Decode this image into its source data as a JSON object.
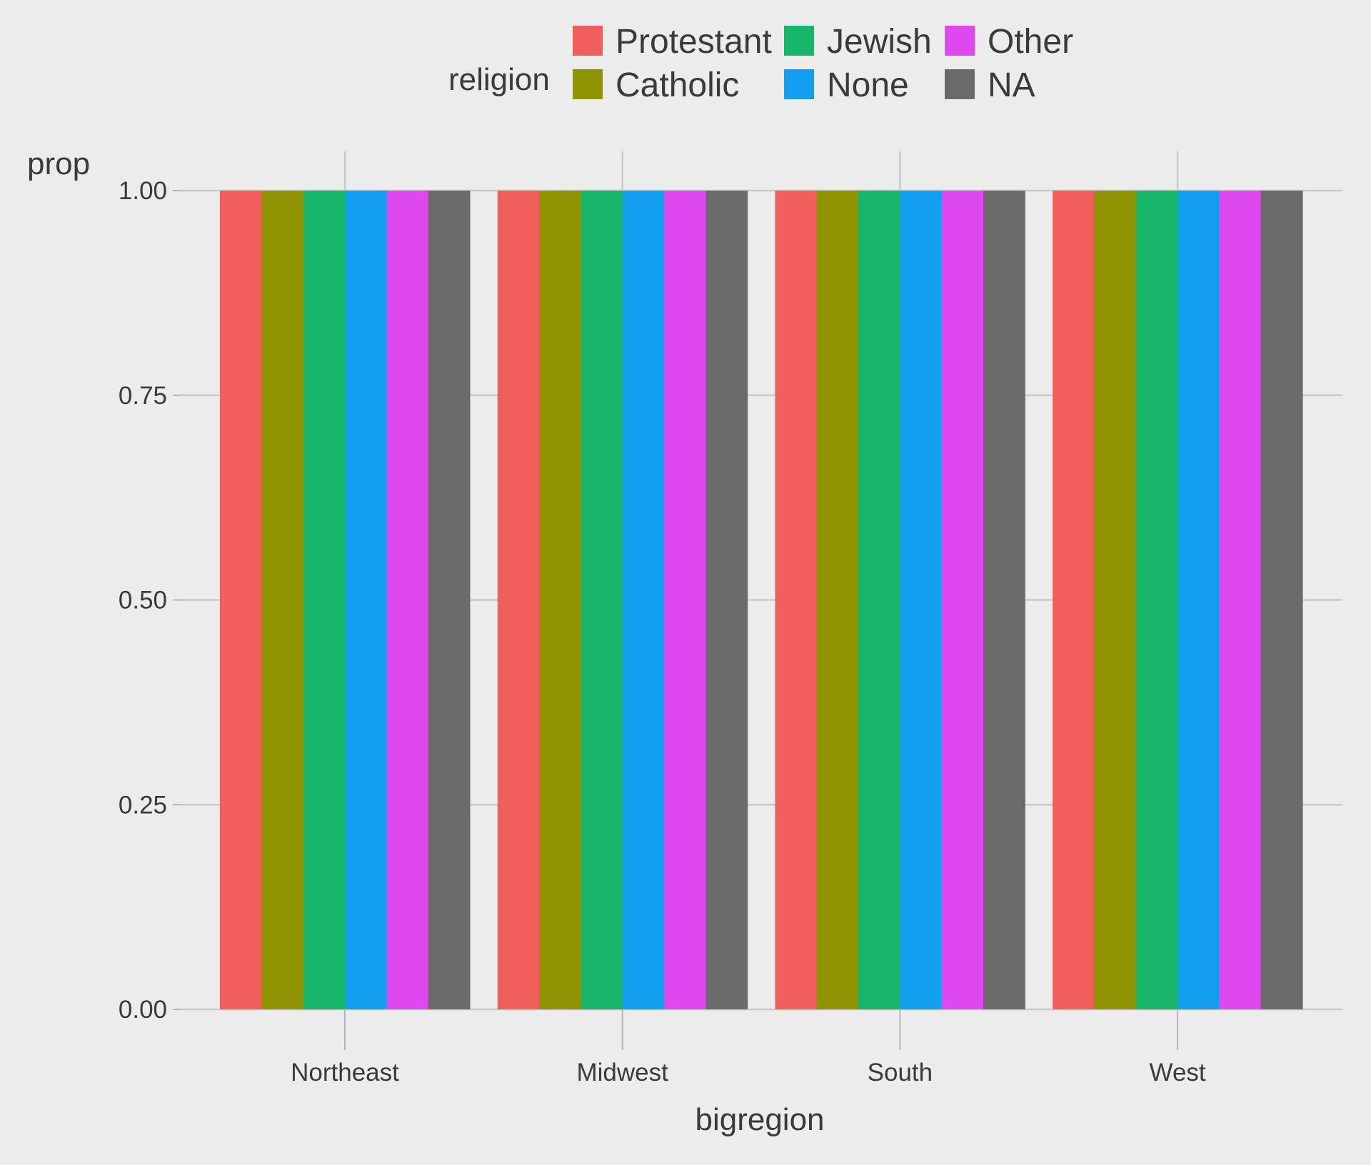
{
  "chart_data": {
    "type": "bar",
    "xlabel": "bigregion",
    "ylabel": "prop",
    "ylim": [
      0,
      1
    ],
    "yticks": [
      "0.00",
      "0.25",
      "0.50",
      "0.75",
      "1.00"
    ],
    "grid": true,
    "legend": {
      "title": "religion",
      "placement": "top"
    },
    "categories": [
      "Northeast",
      "Midwest",
      "South",
      "West"
    ],
    "series": [
      {
        "name": "Protestant",
        "color": "#f25e5c",
        "values": [
          1,
          1,
          1,
          1
        ]
      },
      {
        "name": "Catholic",
        "color": "#919402",
        "values": [
          1,
          1,
          1,
          1
        ]
      },
      {
        "name": "Jewish",
        "color": "#18b66b",
        "values": [
          1,
          1,
          1,
          1
        ]
      },
      {
        "name": "None",
        "color": "#139ff0",
        "values": [
          1,
          1,
          1,
          1
        ]
      },
      {
        "name": "Other",
        "color": "#df48ef",
        "values": [
          1,
          1,
          1,
          1
        ]
      },
      {
        "name": "NA",
        "color": "#6b6b6b",
        "values": [
          1,
          1,
          1,
          1
        ]
      }
    ]
  }
}
